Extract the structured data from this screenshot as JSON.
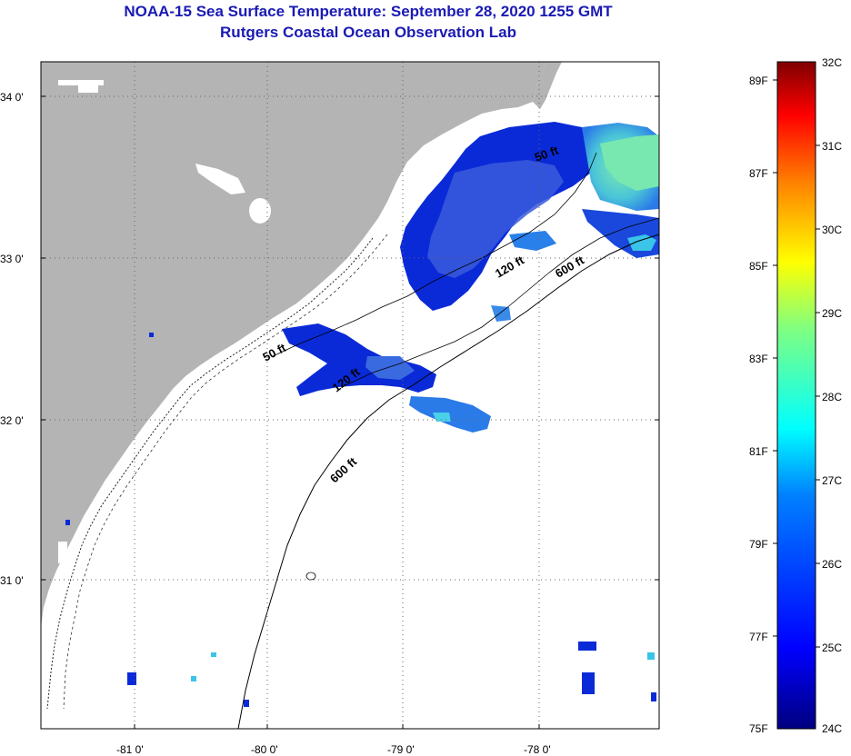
{
  "header": {
    "title": "NOAA-15 Sea Surface Temperature:  September 28, 2020 1255 GMT",
    "subtitle": "Rutgers Coastal Ocean Observation Lab"
  },
  "map": {
    "lat_labels": [
      "34 0'",
      "33 0'",
      "32 0'",
      "31 0'"
    ],
    "lon_labels": [
      "-81 0'",
      "-80 0'",
      "-79 0'",
      "-78 0'"
    ],
    "contour_labels": [
      "50 ft",
      "50 ft",
      "120 ft",
      "120 ft",
      "600 ft",
      "600 ft"
    ],
    "colors": {
      "land": "#b4b4b4",
      "cloud": "#ffffff",
      "water_deep": "#0a2ad8",
      "water_mid": "#2a6ae8",
      "water_warm": "#6ee0a8"
    }
  },
  "colorbar": {
    "fahrenheit_labels": [
      "89F",
      "87F",
      "85F",
      "83F",
      "81F",
      "79F",
      "77F",
      "75F"
    ],
    "celsius_labels": [
      "32C",
      "31C",
      "30C",
      "29C",
      "28C",
      "27C",
      "26C",
      "25C",
      "24C"
    ],
    "range_c": [
      24,
      32
    ],
    "colors": [
      "#00007f",
      "#0000ff",
      "#0080ff",
      "#00ffff",
      "#80ff80",
      "#ffff00",
      "#ff8000",
      "#ff0000",
      "#7f0000"
    ]
  }
}
